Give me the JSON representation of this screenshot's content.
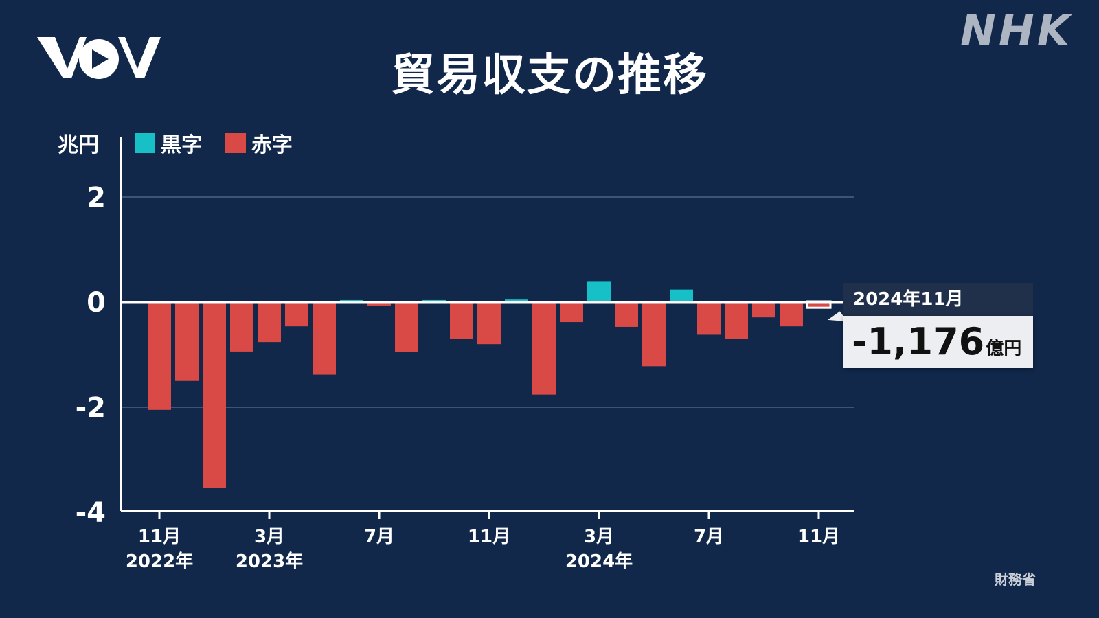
{
  "logos": {
    "left": "VOV",
    "right": "NHK"
  },
  "source": "財務省",
  "colors": {
    "background": "#11284b",
    "surplus": "#17bfc7",
    "deficit": "#d94a47",
    "axis": "#ffffff",
    "grid": "#3d5478"
  },
  "callout": {
    "label": "2024年11月",
    "value": "-1,176",
    "unit": "億円"
  },
  "chart_data": {
    "type": "bar",
    "title": "貿易収支の推移",
    "ylabel": "兆円",
    "ylim": [
      -4,
      2
    ],
    "yticks": [
      "2",
      "0",
      "-2",
      "-4"
    ],
    "legend": [
      {
        "name": "黒字",
        "color": "#17bfc7"
      },
      {
        "name": "赤字",
        "color": "#d94a47"
      }
    ],
    "legend_position": "top-left",
    "grid": true,
    "x_tick_labels": [
      {
        "index": 0,
        "month": "11月",
        "year": "2022年"
      },
      {
        "index": 4,
        "month": "3月",
        "year": "2023年"
      },
      {
        "index": 8,
        "month": "7月",
        "year": ""
      },
      {
        "index": 12,
        "month": "11月",
        "year": ""
      },
      {
        "index": 16,
        "month": "3月",
        "year": "2024年"
      },
      {
        "index": 20,
        "month": "7月",
        "year": ""
      },
      {
        "index": 24,
        "month": "11月",
        "year": ""
      }
    ],
    "values": [
      -2.05,
      -1.5,
      -3.53,
      -0.94,
      -0.76,
      -0.46,
      -1.38,
      0.04,
      -0.07,
      -0.95,
      0.04,
      -0.7,
      -0.8,
      0.05,
      -1.76,
      -0.38,
      0.4,
      -0.47,
      -1.22,
      0.24,
      -0.62,
      -0.7,
      -0.29,
      -0.46,
      -0.12
    ]
  }
}
